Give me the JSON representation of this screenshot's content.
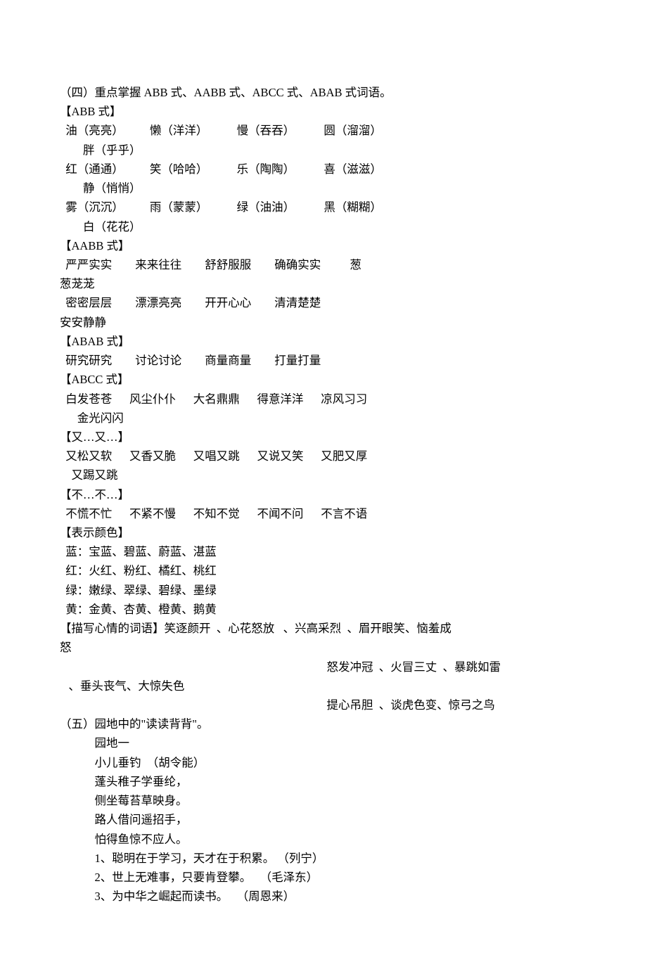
{
  "section4": {
    "title": "（四）重点掌握 ABB 式、AABB 式、ABCC 式、ABAB 式词语。",
    "abb": {
      "label": "【ABB 式】",
      "row1": "  油（亮亮）         懒（洋洋）          慢（吞吞）          圆（溜溜）",
      "row1b": "        胖（乎乎）",
      "row2": "  红（通通）         笑（哈哈）          乐（陶陶）          喜（滋滋）",
      "row2b": "        静（悄悄）",
      "row3": "  雾（沉沉）         雨（蒙蒙）          绿（油油）          黑（糊糊）",
      "row3b": "        白（花花）"
    },
    "aabb": {
      "label": "【AABB 式】",
      "row1": "  严严实实        来来往往        舒舒服服        确确实实          葱",
      "row1b": "葱茏茏",
      "row2": "  密密层层        漂漂亮亮        开开心心        清清楚楚",
      "row2b": "安安静静"
    },
    "abab": {
      "label": "【ABAB 式】",
      "row1": "  研究研究        讨论讨论        商量商量        打量打量"
    },
    "abcc": {
      "label": "【ABCC 式】",
      "row1": "  白发苍苍      风尘仆仆      大名鼎鼎      得意洋洋      凉风习习",
      "row1b": "      金光闪闪"
    },
    "youyou": {
      "label": "【又…又…】",
      "row1": "  又松又软      又香又脆      又唱又跳      又说又笑      又肥又厚",
      "row1b": "    又踢又跳"
    },
    "bubu": {
      "label": "【不…不…】",
      "row1": "  不慌不忙      不紧不慢      不知不觉      不闻不问      不言不语"
    },
    "colors": {
      "label": "【表示颜色】",
      "blue": "  蓝：宝蓝、碧蓝、蔚蓝、湛蓝",
      "red": "  红：火红、粉红、橘红、桃红",
      "green": "  绿：嫩绿、翠绿、碧绿、墨绿",
      "yellow": "  黄：金黄、杏黄、橙黄、鹅黄"
    },
    "mood": {
      "label_line1": "【描写心情的词语】笑逐颜开  、心花怒放   、兴高采烈  、眉开眼笑、恼羞成",
      "label_line1b": "怒",
      "line2": "怒发冲冠  、火冒三丈  、暴跳如雷",
      "line2b": "   、垂头丧气、大惊失色",
      "line3": "提心吊胆  、谈虎色变、惊弓之鸟"
    }
  },
  "section5": {
    "title": "（五）园地中的\"读读背背\"。",
    "sub1": "园地一",
    "poem_title": "小儿垂钓  （胡令能）",
    "poem1": "蓬头稚子学垂纶，",
    "poem2": "侧坐莓苔草映身。",
    "poem3": "路人借问遥招手，",
    "poem4": "怕得鱼惊不应人。",
    "quote1": "1、聪明在于学习，天才在于积累。 （列宁）",
    "quote2": "2、世上无难事，只要肯登攀。   （毛泽东）",
    "quote3": "3、为中华之崛起而读书。   （周恩来）"
  }
}
